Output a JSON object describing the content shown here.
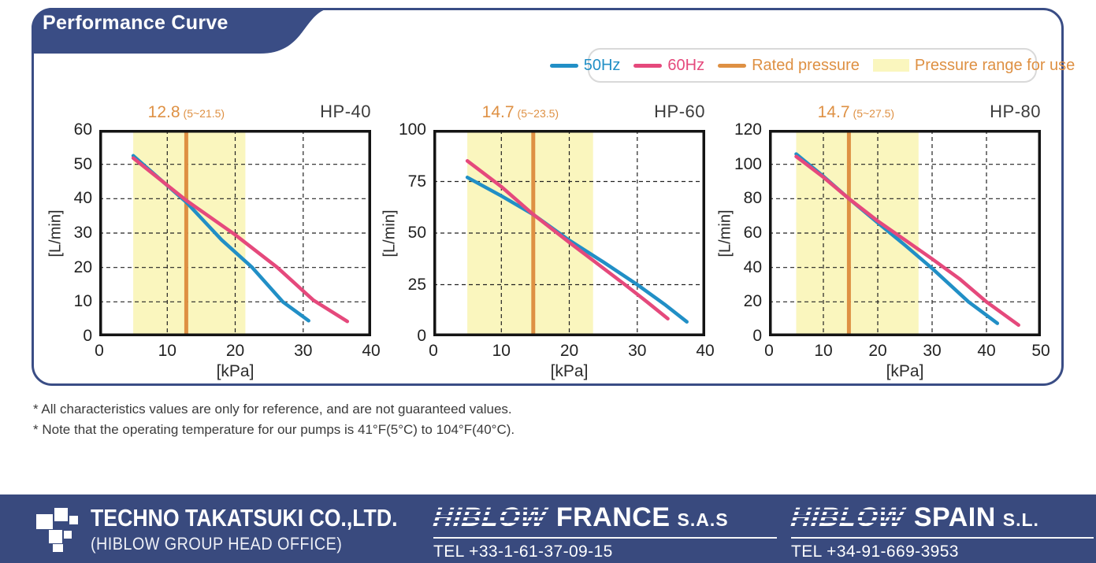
{
  "page": {
    "title": "Performance Curve"
  },
  "colors": {
    "navy": "#3a4d85",
    "footer_navy": "#394a7e",
    "hz50": "#218fc6",
    "hz60": "#e5497c",
    "rated": "#de9043",
    "band": "#faf6be",
    "axis": "#141414",
    "legend_border": "#d9d9d9"
  },
  "legend": {
    "items": [
      {
        "label": "50Hz",
        "type": "line",
        "color": "#218fc6"
      },
      {
        "label": "60Hz",
        "type": "line",
        "color": "#e5497c"
      },
      {
        "label": "Rated pressure",
        "type": "line",
        "color": "#de9043"
      },
      {
        "label": "Pressure range for use",
        "type": "swatch",
        "color": "#faf6be",
        "text_color": "#de9043"
      }
    ]
  },
  "chart_data": [
    {
      "type": "line",
      "title": "HP-40",
      "xlabel": "[kPa]",
      "ylabel": "[L/min]",
      "xlim": [
        0,
        40
      ],
      "ylim": [
        0,
        60
      ],
      "x_ticks": [
        0,
        10,
        20,
        30,
        40
      ],
      "y_ticks": [
        0,
        10,
        20,
        30,
        40,
        50,
        60
      ],
      "grid": "dashed",
      "legend_position": "top-right-shared",
      "rated_pressure": 12.8,
      "rated_value_label": "12.8",
      "pressure_range": [
        5,
        21.5
      ],
      "pressure_range_label": "(5~21.5)",
      "series": [
        {
          "name": "50Hz",
          "color": "#218fc6",
          "points": [
            [
              5,
              52.5
            ],
            [
              12.8,
              39
            ],
            [
              18,
              28
            ],
            [
              22.5,
              20
            ],
            [
              27,
              10
            ],
            [
              30.8,
              4.5
            ]
          ]
        },
        {
          "name": "60Hz",
          "color": "#e5497c",
          "points": [
            [
              5,
              51.8
            ],
            [
              12.8,
              39.5
            ],
            [
              20,
              29.5
            ],
            [
              26.2,
              20
            ],
            [
              31.5,
              10.5
            ],
            [
              36.5,
              4.3
            ]
          ]
        }
      ]
    },
    {
      "type": "line",
      "title": "HP-60",
      "xlabel": "[kPa]",
      "ylabel": "[L/min]",
      "xlim": [
        0,
        40
      ],
      "ylim": [
        0,
        100
      ],
      "x_ticks": [
        0,
        10,
        20,
        30,
        40
      ],
      "y_ticks": [
        0,
        25,
        50,
        75,
        100
      ],
      "grid": "dashed",
      "rated_pressure": 14.7,
      "rated_value_label": "14.7",
      "pressure_range": [
        5,
        23.5
      ],
      "pressure_range_label": "(5~23.5)",
      "series": [
        {
          "name": "50Hz",
          "color": "#218fc6",
          "points": [
            [
              5,
              77
            ],
            [
              10,
              68
            ],
            [
              14.7,
              59
            ],
            [
              20,
              46.5
            ],
            [
              25,
              36
            ],
            [
              30,
              25
            ],
            [
              34,
              15.5
            ],
            [
              37.3,
              7
            ]
          ]
        },
        {
          "name": "60Hz",
          "color": "#e5497c",
          "points": [
            [
              5,
              85
            ],
            [
              10,
              72.5
            ],
            [
              14.7,
              59
            ],
            [
              20,
              45.5
            ],
            [
              24,
              35.5
            ],
            [
              28.2,
              25
            ],
            [
              31.5,
              16.5
            ],
            [
              34.5,
              8.5
            ]
          ]
        }
      ]
    },
    {
      "type": "line",
      "title": "HP-80",
      "xlabel": "[kPa]",
      "ylabel": "[L/min]",
      "xlim": [
        0,
        50
      ],
      "ylim": [
        0,
        120
      ],
      "x_ticks": [
        0,
        10,
        20,
        30,
        40,
        50
      ],
      "y_ticks": [
        0,
        20,
        40,
        60,
        80,
        100,
        120
      ],
      "grid": "dashed",
      "rated_pressure": 14.7,
      "rated_value_label": "14.7",
      "pressure_range": [
        5,
        27.5
      ],
      "pressure_range_label": "(5~27.5)",
      "series": [
        {
          "name": "50Hz",
          "color": "#218fc6",
          "points": [
            [
              5,
              106
            ],
            [
              10,
              93
            ],
            [
              14.7,
              80
            ],
            [
              20,
              66
            ],
            [
              25,
              53
            ],
            [
              30,
              39.5
            ],
            [
              36.7,
              20
            ],
            [
              42,
              7.5
            ]
          ]
        },
        {
          "name": "60Hz",
          "color": "#e5497c",
          "points": [
            [
              5,
              104.5
            ],
            [
              10,
              92.5
            ],
            [
              14.7,
              80
            ],
            [
              20,
              67
            ],
            [
              25,
              56
            ],
            [
              30,
              45
            ],
            [
              35,
              33.5
            ],
            [
              40,
              20
            ],
            [
              45.9,
              6.5
            ]
          ]
        }
      ]
    }
  ],
  "notes": [
    "* All characteristics values are only for reference, and are not guaranteed values.",
    "* Note that the operating temperature for our pumps is 41°F(5°C) to 104°F(40°C)."
  ],
  "footer": {
    "head_office": {
      "company": "TECHNO TAKATSUKI CO.,LTD.",
      "subtitle": "(HIBLOW GROUP HEAD OFFICE)"
    },
    "france": {
      "brand": "HIBLOW",
      "region": "FRANCE",
      "suffix": "S.A.S",
      "tel": "TEL +33-1-61-37-09-15"
    },
    "spain": {
      "brand": "HIBLOW",
      "region": "SPAIN",
      "suffix": "S.L.",
      "tel": "TEL +34-91-669-3953"
    }
  }
}
